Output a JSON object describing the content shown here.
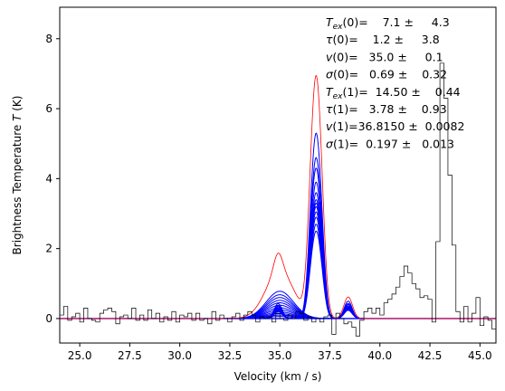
{
  "chart_data": {
    "type": "line",
    "xlabel": "Velocity (km / s)",
    "ylabel_prefix": "Brightness Temperature ",
    "ylabel_var": "T",
    "ylabel_suffix": " (K)",
    "xlim": [
      24.0,
      45.8
    ],
    "ylim": [
      -0.7,
      8.9
    ],
    "xticks": [
      25.0,
      27.5,
      30.0,
      32.5,
      35.0,
      37.5,
      40.0,
      42.5,
      45.0
    ],
    "xtick_labels": [
      "25.0",
      "27.5",
      "30.0",
      "32.5",
      "35.0",
      "37.5",
      "40.0",
      "42.5",
      "45.0"
    ],
    "yticks": [
      0,
      2,
      4,
      6,
      8
    ],
    "ytick_labels": [
      "0",
      "2",
      "4",
      "6",
      "8"
    ],
    "grid": false,
    "colors": {
      "observed": "#000000",
      "best_fit": "#ff0000",
      "samples": "#0000ff"
    },
    "observed": {
      "channel_width": 0.2,
      "x_start": 24.0,
      "values": [
        0.1,
        0.35,
        -0.05,
        0.05,
        0.15,
        -0.1,
        0.3,
        0.0,
        -0.05,
        -0.1,
        0.15,
        0.25,
        0.3,
        0.2,
        -0.15,
        0.05,
        0.1,
        0.0,
        0.3,
        -0.05,
        0.1,
        -0.05,
        0.25,
        0.0,
        0.15,
        -0.1,
        0.05,
        -0.05,
        0.2,
        -0.1,
        0.1,
        0.05,
        0.15,
        -0.05,
        0.15,
        -0.05,
        0.0,
        -0.15,
        0.2,
        -0.05,
        0.1,
        0.0,
        -0.1,
        0.05,
        0.15,
        -0.05,
        0.1,
        0.2,
        0.1,
        -0.1,
        0.05,
        0.0,
        0.05,
        -0.1,
        0.15,
        0.0,
        -0.05,
        0.1,
        0.0,
        0.2,
        0.15,
        -0.05,
        0.05,
        -0.1,
        0.0,
        -0.1,
        0.05,
        0.1,
        -0.45,
        0.15,
        0.0,
        -0.15,
        -0.1,
        -0.25,
        -0.5,
        -0.05,
        0.2,
        0.3,
        0.15,
        0.3,
        0.1,
        0.45,
        0.55,
        0.7,
        0.9,
        1.2,
        1.5,
        1.3,
        1.0,
        0.85,
        0.6,
        0.65,
        0.55,
        -0.1,
        2.2,
        7.3,
        6.3,
        4.1,
        2.1,
        0.2,
        -0.1,
        0.35,
        -0.1,
        0.15,
        0.6,
        -0.2,
        0.05,
        -0.05,
        -0.3,
        0.0,
        -0.15,
        -0.05,
        0.0,
        0.1,
        -0.1,
        0.05,
        -0.1,
        0.0,
        0.05,
        -0.05,
        0.1,
        0.0,
        -0.05,
        0.05,
        0.05,
        0.1,
        -0.15,
        0.05,
        0.0,
        0.1,
        -0.1,
        0.05,
        0.0,
        0.1,
        -0.05,
        0.05,
        -0.05,
        0.1,
        0.0,
        0.1,
        0.05,
        -0.05,
        0.1
      ]
    },
    "model": {
      "best": {
        "tex": [
          7.1,
          14.5
        ],
        "tau": [
          1.2,
          3.78
        ],
        "v": [
          35.0,
          36.815
        ],
        "sigma": [
          0.69,
          0.197
        ]
      },
      "sample_peaks": [
        [
          0.78,
          5.3
        ],
        [
          0.68,
          4.6
        ],
        [
          0.6,
          4.3
        ],
        [
          0.52,
          3.9
        ],
        [
          0.45,
          3.6
        ],
        [
          0.38,
          3.4
        ],
        [
          0.31,
          3.3
        ],
        [
          0.25,
          3.2
        ],
        [
          0.19,
          3.05
        ],
        [
          0.14,
          2.9
        ],
        [
          0.1,
          2.7
        ],
        [
          0.06,
          2.5
        ]
      ],
      "hyperfine_offsets": [
        -1.9,
        -0.25,
        0.0,
        0.25,
        1.6
      ],
      "hyperfine_weights": [
        0.12,
        0.55,
        1.0,
        0.55,
        0.14
      ]
    },
    "annotations": [
      {
        "var": "T",
        "sub": "ex",
        "arg": "(0)=",
        "val": "    7.1 ±     4.3"
      },
      {
        "var": "τ",
        "sub": "",
        "arg": "(0)=",
        "val": "    1.2 ±     3.8"
      },
      {
        "var": "v",
        "sub": "",
        "arg": "(0)=",
        "val": "   35.0 ±     0.1"
      },
      {
        "var": "σ",
        "sub": "",
        "arg": "(0)=",
        "val": "   0.69 ±    0.32"
      },
      {
        "var": "T",
        "sub": "ex",
        "arg": "(1)=",
        "val": "  14.50 ±    0.44"
      },
      {
        "var": "τ",
        "sub": "",
        "arg": "(1)=",
        "val": "   3.78 ±    0.93"
      },
      {
        "var": "v",
        "sub": "",
        "arg": "(1)=",
        "val": "36.8150 ±  0.0082"
      },
      {
        "var": "σ",
        "sub": "",
        "arg": "(1)=",
        "val": "  0.197 ±   0.013"
      }
    ]
  }
}
